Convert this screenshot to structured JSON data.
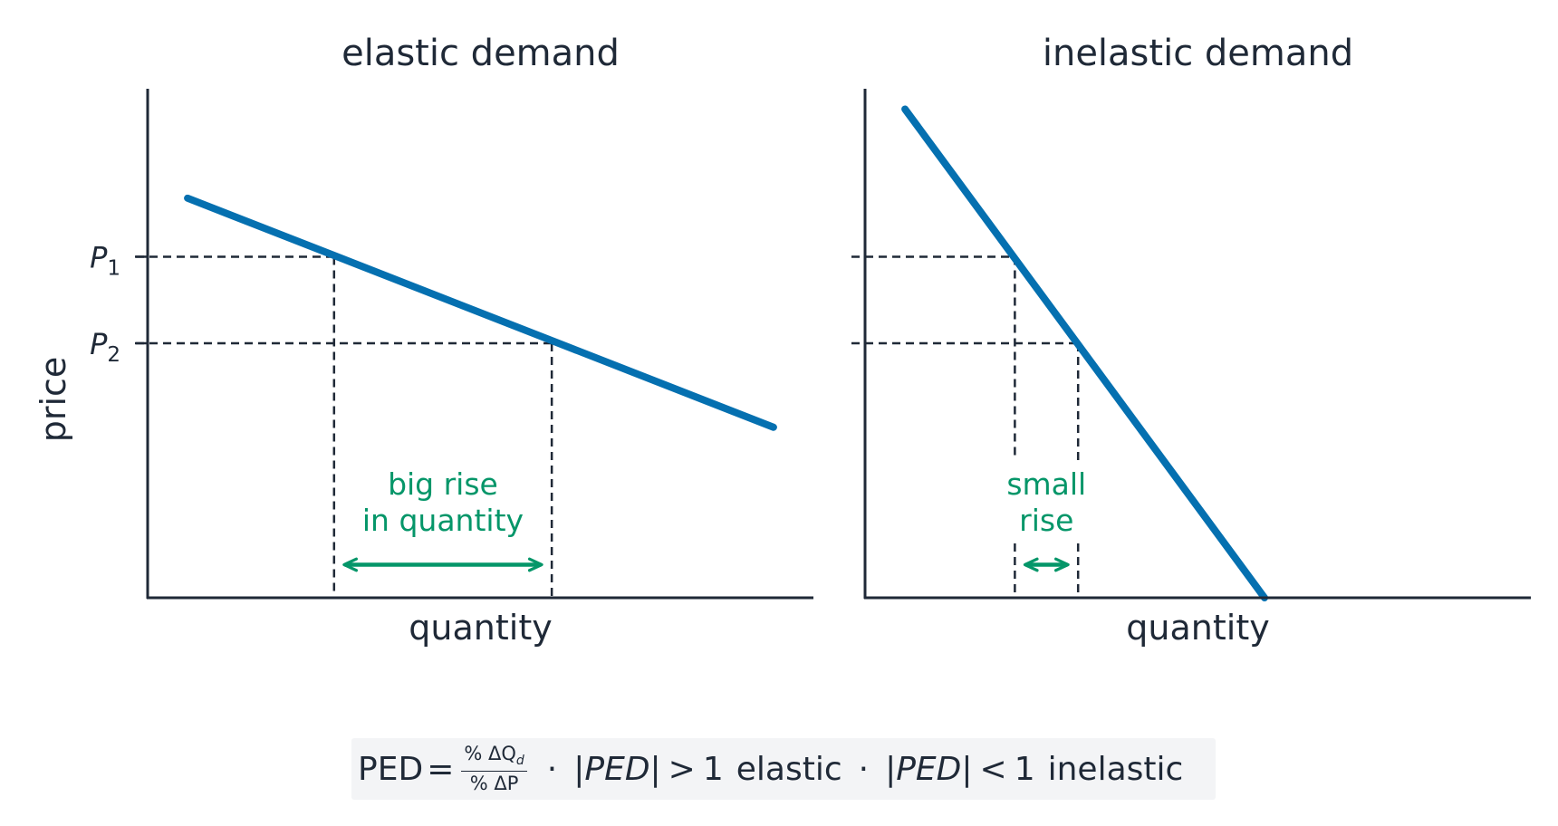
{
  "colors": {
    "curve": "#0570b0",
    "annotation": "#059669",
    "axis": "#1f2937",
    "guide": "#1f2937"
  },
  "chart_data": [
    {
      "type": "line",
      "title": "elastic demand",
      "xlabel": "quantity",
      "ylabel": "price",
      "xlim": [
        0,
        10
      ],
      "ylim": [
        0,
        10
      ],
      "x_ticks": false,
      "y_ticks": [
        {
          "value": 6.7,
          "label": "P",
          "sub": "1"
        },
        {
          "value": 5.0,
          "label": "P",
          "sub": "2"
        }
      ],
      "series": [
        {
          "x": [
            0.6,
            9.4
          ],
          "y": [
            7.85,
            3.35
          ]
        }
      ],
      "guides": [
        {
          "x": 2.8,
          "y": 6.7
        },
        {
          "x": 6.07,
          "y": 5.0
        }
      ],
      "annotation": {
        "lines": [
          "big rise",
          "in quantity"
        ],
        "from_x": 2.8,
        "to_x": 6.07,
        "y": 0.65
      }
    },
    {
      "type": "line",
      "title": "inelastic demand",
      "xlabel": "quantity",
      "ylabel": "",
      "xlim": [
        0,
        10
      ],
      "ylim": [
        0,
        10
      ],
      "x_ticks": false,
      "y_ticks": [],
      "series": [
        {
          "x": [
            0.6,
            6.0
          ],
          "y": [
            9.6,
            0.0
          ]
        }
      ],
      "guides": [
        {
          "x": 2.25,
          "y": 6.7
        },
        {
          "x": 3.2,
          "y": 5.0
        }
      ],
      "annotation": {
        "lines": [
          "small",
          "rise"
        ],
        "from_x": 2.25,
        "to_x": 3.2,
        "y": 0.65
      }
    }
  ],
  "formula": {
    "lhs": "PED",
    "eq": "=",
    "num": "% ΔQ",
    "num_sub": "d",
    "den": "% ΔP",
    "sep": "·",
    "abs_expr": "|PED|",
    "gt": ">",
    "lt": "<",
    "one": "1",
    "elastic": "elastic",
    "inelastic": "inelastic"
  }
}
